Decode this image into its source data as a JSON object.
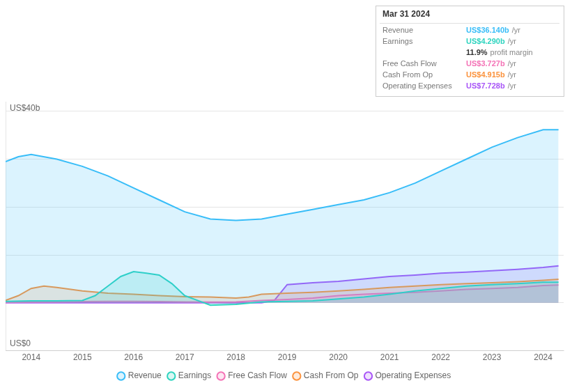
{
  "chart_data": {
    "type": "area",
    "xlim": [
      2013.5,
      2024.4
    ],
    "xticks": [
      2014,
      2015,
      2016,
      2017,
      2018,
      2019,
      2020,
      2021,
      2022,
      2023,
      2024
    ],
    "ylim": [
      -10,
      42
    ],
    "yticks": [
      -10,
      0,
      10,
      20,
      30,
      40
    ],
    "grid": "y",
    "legend": "bottom",
    "tick_labels": "x",
    "series": [
      {
        "name": "Revenue",
        "color": "#38bdf8",
        "x": [
          2013.5,
          2013.75,
          2014.0,
          2014.5,
          2015.0,
          2015.5,
          2016.0,
          2016.5,
          2017.0,
          2017.5,
          2018.0,
          2018.5,
          2019.0,
          2019.5,
          2020.0,
          2020.5,
          2021.0,
          2021.5,
          2022.0,
          2022.5,
          2023.0,
          2023.5,
          2024.0,
          2024.3
        ],
        "values": [
          29.5,
          30.5,
          31.0,
          30.0,
          28.5,
          26.5,
          24.0,
          21.5,
          19.0,
          17.5,
          17.2,
          17.5,
          18.5,
          19.5,
          20.5,
          21.5,
          23.0,
          25.0,
          27.5,
          30.0,
          32.5,
          34.5,
          36.14,
          36.14
        ]
      },
      {
        "name": "Earnings",
        "color": "#2dd4bf",
        "x": [
          2013.5,
          2014.0,
          2014.5,
          2015.0,
          2015.25,
          2015.5,
          2015.75,
          2016.0,
          2016.25,
          2016.5,
          2016.75,
          2017.0,
          2017.25,
          2017.5,
          2018.0,
          2018.5,
          2019.0,
          2019.5,
          2020.0,
          2020.5,
          2021.0,
          2021.5,
          2022.0,
          2022.5,
          2023.0,
          2023.5,
          2024.0,
          2024.3
        ],
        "values": [
          0.3,
          0.4,
          0.4,
          0.5,
          1.5,
          3.5,
          5.5,
          6.5,
          6.2,
          5.8,
          4.0,
          1.5,
          0.5,
          -0.5,
          -0.3,
          0.2,
          0.3,
          0.4,
          0.8,
          1.2,
          1.8,
          2.5,
          3.0,
          3.5,
          3.8,
          4.0,
          4.29,
          4.29
        ]
      },
      {
        "name": "Free Cash Flow",
        "color": "#f472b6",
        "x": [
          2013.5,
          2014.0,
          2014.5,
          2015.0,
          2015.5,
          2016.0,
          2016.5,
          2017.0,
          2017.5,
          2018.0,
          2018.5,
          2019.0,
          2019.5,
          2020.0,
          2020.5,
          2021.0,
          2021.5,
          2022.0,
          2022.5,
          2023.0,
          2023.5,
          2024.0,
          2024.3
        ],
        "values": [
          0.1,
          0.15,
          0.2,
          0.25,
          0.3,
          0.3,
          0.25,
          0.2,
          0.15,
          0.2,
          0.5,
          0.7,
          1.0,
          1.5,
          1.8,
          2.0,
          2.2,
          2.5,
          2.8,
          3.0,
          3.2,
          3.6,
          3.727
        ]
      },
      {
        "name": "Cash From Op",
        "color": "#fb923c",
        "x": [
          2013.5,
          2013.75,
          2014.0,
          2014.25,
          2014.5,
          2015.0,
          2015.5,
          2016.0,
          2016.5,
          2017.0,
          2017.5,
          2018.0,
          2018.25,
          2018.5,
          2019.0,
          2019.5,
          2020.0,
          2020.5,
          2021.0,
          2021.5,
          2022.0,
          2022.5,
          2023.0,
          2023.5,
          2024.0,
          2024.3
        ],
        "values": [
          0.5,
          1.5,
          3.0,
          3.5,
          3.2,
          2.5,
          2.0,
          1.8,
          1.5,
          1.3,
          1.2,
          1.0,
          1.2,
          1.8,
          2.0,
          2.2,
          2.5,
          2.8,
          3.2,
          3.5,
          3.8,
          4.0,
          4.2,
          4.4,
          4.7,
          4.915
        ]
      },
      {
        "name": "Operating Expenses",
        "color": "#a855f7",
        "x": [
          2013.5,
          2018.5,
          2018.75,
          2019.0,
          2019.5,
          2020.0,
          2020.5,
          2021.0,
          2021.5,
          2022.0,
          2022.5,
          2023.0,
          2023.5,
          2024.0,
          2024.3
        ],
        "values": [
          0.0,
          0.0,
          0.5,
          3.8,
          4.2,
          4.5,
          5.0,
          5.5,
          5.8,
          6.2,
          6.4,
          6.7,
          7.0,
          7.4,
          7.728
        ]
      }
    ],
    "annotations": [
      {
        "text": "US$40b"
      },
      {
        "text": "US$0"
      },
      {
        "title": "Mar 31 2024",
        "rows": [
          {
            "label": "Revenue",
            "text": "US$36.140b",
            "suffix": "/yr",
            "color": "#38bdf8"
          },
          {
            "label": "Earnings",
            "text": "US$4.290b",
            "suffix": "/yr",
            "color": "#2dd4bf"
          },
          {
            "text": "11.9%",
            "suffix": "profit margin"
          },
          {
            "label": "Free Cash Flow",
            "text": "US$3.727b",
            "suffix": "/yr",
            "color": "#f472b6"
          },
          {
            "label": "Cash From Op",
            "text": "US$4.915b",
            "suffix": "/yr",
            "color": "#fb923c"
          },
          {
            "label": "Operating Expenses",
            "text": "US$7.728b",
            "suffix": "/yr",
            "color": "#a855f7"
          }
        ]
      }
    ]
  }
}
